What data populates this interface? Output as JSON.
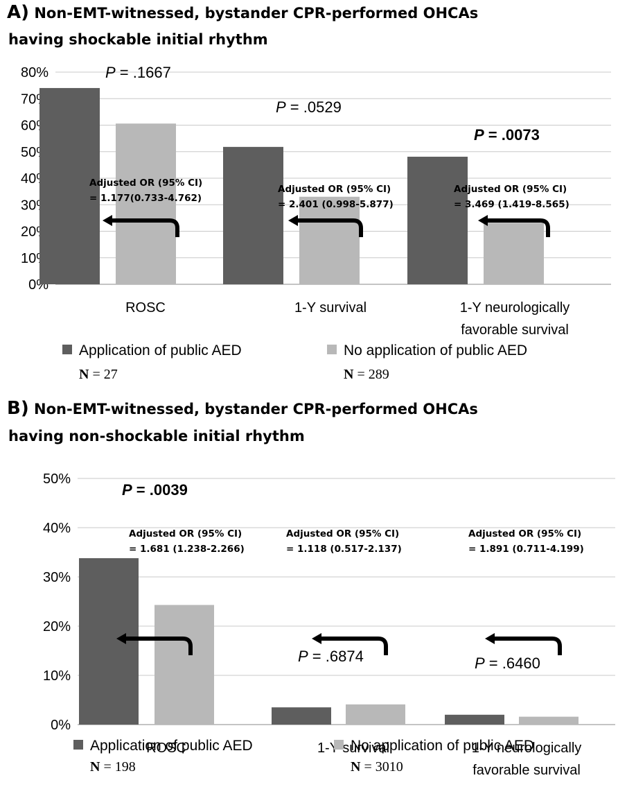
{
  "colors": {
    "aed": "#5e5e5e",
    "no_aed": "#b8b8b8",
    "grid": "#c8c8c8",
    "arrow": "#000000"
  },
  "panels": [
    {
      "letter": "A)",
      "title_line1": "Non-EMT-witnessed, bystander CPR-performed OHCAs",
      "title_line2": "having shockable initial rhythm",
      "legend": {
        "aed_label": "Application of public AED",
        "aed_n_prefix": "N",
        "aed_n_rest": " = 27",
        "no_aed_label": "No application of public AED",
        "no_aed_n_prefix": "N",
        "no_aed_n_rest": " = 289"
      }
    },
    {
      "letter": "B)",
      "title_line1": "Non-EMT-witnessed, bystander CPR-performed OHCAs",
      "title_line2": "having non-shockable initial rhythm",
      "legend": {
        "aed_label": "Application of public AED",
        "aed_n_prefix": "N",
        "aed_n_rest": " = 198",
        "no_aed_label": "No application of public AED",
        "no_aed_n_prefix": "N",
        "no_aed_n_rest": " = 3010"
      }
    }
  ],
  "chart_data": [
    {
      "type": "bar",
      "title": "Non-EMT-witnessed, bystander CPR-performed OHCAs having shockable initial rhythm",
      "categories": [
        [
          "ROSC"
        ],
        [
          "1-Y survival"
        ],
        [
          "1-Y neurologically",
          "favorable survival"
        ]
      ],
      "series": [
        {
          "name": "Application of public AED",
          "values": [
            74,
            51.8,
            48.1
          ]
        },
        {
          "name": "No application of public AED",
          "values": [
            60.6,
            33.0,
            23.2
          ]
        }
      ],
      "ylim": [
        0,
        80
      ],
      "yticks": [
        "0%",
        "10%",
        "20%",
        "30%",
        "40%",
        "50%",
        "60%",
        "70%",
        "80%"
      ],
      "grid": true,
      "legend_position": "bottom",
      "annotations": [
        {
          "p_prefix": "P",
          "p_rest": " = .1667",
          "bold": false,
          "or_line1": "Adjusted OR (95% CI)",
          "or_line2": "= 1.177(0.733-4.762)"
        },
        {
          "p_prefix": "P",
          "p_rest": " = .0529",
          "bold": false,
          "or_line1": "Adjusted OR (95% CI)",
          "or_line2": "= 2.401 (0.998-5.877)"
        },
        {
          "p_prefix": "P",
          "p_rest": " = .0073",
          "bold": true,
          "or_line1": "Adjusted OR (95% CI)",
          "or_line2": "= 3.469 (1.419-8.565)"
        }
      ]
    },
    {
      "type": "bar",
      "title": "Non-EMT-witnessed, bystander CPR-performed OHCAs having non-shockable initial rhythm",
      "categories": [
        [
          "ROSC"
        ],
        [
          "1-Y survival"
        ],
        [
          "1-Y neurologically",
          "favorable survival"
        ]
      ],
      "series": [
        {
          "name": "Application of public AED",
          "values": [
            33.8,
            3.5,
            2.0
          ]
        },
        {
          "name": "No application of public AED",
          "values": [
            24.3,
            4.1,
            1.6
          ]
        }
      ],
      "ylim": [
        0,
        50
      ],
      "yticks": [
        "0%",
        "10%",
        "20%",
        "30%",
        "40%",
        "50%"
      ],
      "grid": true,
      "legend_position": "bottom",
      "annotations": [
        {
          "p_prefix": "P",
          "p_rest": " = .0039",
          "bold": true,
          "or_line1": "Adjusted OR (95% CI)",
          "or_line2": "= 1.681 (1.238-2.266)"
        },
        {
          "p_prefix": "P",
          "p_rest": " = .6874",
          "bold": false,
          "or_line1": "Adjusted OR (95% CI)",
          "or_line2": "= 1.118 (0.517-2.137)"
        },
        {
          "p_prefix": "P",
          "p_rest": " = .6460",
          "bold": false,
          "or_line1": "Adjusted OR (95% CI)",
          "or_line2": "= 1.891 (0.711-4.199)"
        }
      ]
    }
  ]
}
